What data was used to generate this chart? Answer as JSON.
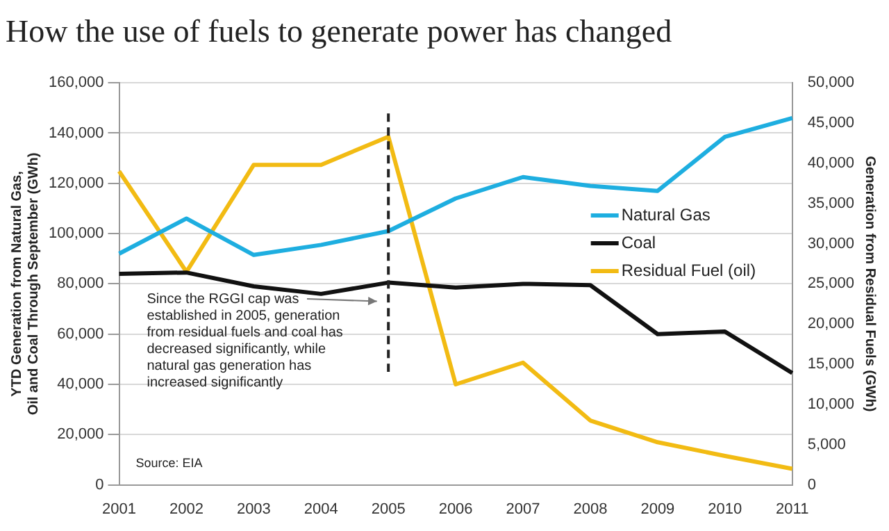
{
  "chart_data": {
    "type": "line",
    "title": "How the use of fuels to generate power has changed",
    "ylabel": "YTD Generation from Natural Gas, Oil and Coal Through September (GWh)",
    "y2label": "Generation from Residual Fuels (GWh)",
    "categories": [
      "2001",
      "2002",
      "2003",
      "2004",
      "2005",
      "2006",
      "2007",
      "2008",
      "2009",
      "2010",
      "2011"
    ],
    "series": [
      {
        "name": "Natural Gas",
        "color": "#1eaee0",
        "values": [
          92000,
          106000,
          91500,
          95500,
          101000,
          114000,
          122500,
          119000,
          117000,
          138500,
          146000
        ]
      },
      {
        "name": "Coal",
        "color": "#111111",
        "values": [
          84000,
          84500,
          79000,
          76000,
          80500,
          78500,
          80000,
          79500,
          60000,
          61000,
          44500
        ]
      },
      {
        "name": "Residual Fuel (oil)",
        "color": "#f2bb13",
        "axis": "y2",
        "values": [
          39000,
          26500,
          39800,
          39800,
          43300,
          12500,
          15200,
          8000,
          5300,
          3600,
          2000
        ]
      }
    ],
    "ylim": [
      0,
      160000
    ],
    "yticks": [
      0,
      {
        "value": 20000,
        "label": "20,000"
      },
      {
        "value": 40000,
        "label": "40,000"
      },
      {
        "value": 60000,
        "label": "60,000"
      },
      {
        "value": 80000,
        "label": "80,000"
      },
      {
        "value": 100000,
        "label": "100,000"
      },
      {
        "value": 120000,
        "label": "120,000"
      },
      {
        "value": 140000,
        "label": "140,000"
      },
      {
        "value": 160000,
        "label": "160,000"
      }
    ],
    "y2lim": [
      0,
      50000
    ],
    "y2ticks": [
      0,
      {
        "value": 5000,
        "label": "5,000"
      },
      {
        "value": 10000,
        "label": "10,000"
      },
      {
        "value": 15000,
        "label": "15,000"
      },
      {
        "value": 20000,
        "label": "20,000"
      },
      {
        "value": 25000,
        "label": "25,000"
      },
      {
        "value": 30000,
        "label": "30,000"
      },
      {
        "value": 35000,
        "label": "35,000"
      },
      {
        "value": 40000,
        "label": "40,000"
      },
      {
        "value": 45000,
        "label": "45,000"
      },
      {
        "value": 50000,
        "label": "50,000"
      }
    ],
    "grid": "y",
    "legend": "right",
    "marker": "none",
    "line_style": "solid",
    "ref_lines": [
      {
        "axis": "x",
        "value": "2005",
        "line_style": "dashed",
        "color": "#222222"
      }
    ],
    "annotations": [
      "Since the RGGI cap was established in 2005, generation from residual fuels and coal has decreased significantly, while natural gas generation has increased significantly",
      "Source: EIA"
    ]
  }
}
